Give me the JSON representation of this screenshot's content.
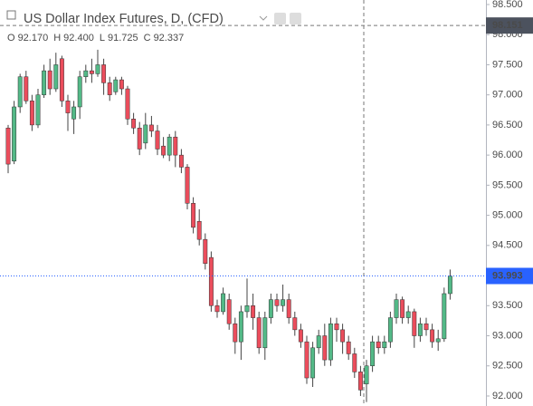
{
  "chart_data": {
    "type": "candlestick",
    "title": "US Dollar Index Futures, D, (CFD)",
    "ohlc_header": {
      "names": [
        "O",
        "H",
        "L",
        "C"
      ],
      "values": [
        92.17,
        92.4,
        91.725,
        92.337
      ],
      "value_labels": [
        "92.170",
        "92.400",
        "91.725",
        "92.337"
      ]
    },
    "open": [
      96.45,
      95.9,
      96.8,
      97.3,
      96.9,
      96.5,
      97.0,
      97.4,
      97.1,
      97.6,
      96.9,
      96.6,
      96.8,
      97.3,
      97.4,
      97.35,
      97.5,
      97.2,
      97.05,
      97.25,
      97.1,
      96.6,
      96.45,
      96.2,
      96.5,
      96.4,
      96.15,
      96.0,
      96.3,
      96.0,
      95.8,
      95.2,
      94.9,
      94.6,
      94.3,
      93.5,
      93.4,
      93.6,
      93.2,
      92.9,
      93.4,
      93.5,
      93.3,
      92.8,
      93.3,
      93.6,
      93.5,
      93.6,
      93.3,
      93.1,
      92.9,
      92.3,
      92.8,
      93.0,
      92.6,
      93.2,
      93.1,
      92.9,
      92.7,
      92.4,
      92.2,
      92.5,
      92.9,
      92.8,
      92.9,
      93.3,
      93.6,
      93.3,
      93.4,
      93.0,
      93.2,
      93.1,
      92.9,
      92.95,
      93.7
    ],
    "high": [
      96.5,
      96.9,
      97.35,
      97.4,
      97.0,
      97.1,
      97.5,
      97.6,
      97.7,
      97.65,
      97.0,
      96.9,
      97.4,
      97.5,
      97.6,
      97.75,
      97.6,
      97.3,
      97.3,
      97.3,
      97.15,
      96.7,
      96.55,
      96.7,
      96.65,
      96.5,
      96.3,
      96.35,
      96.4,
      96.1,
      95.85,
      95.3,
      95.1,
      94.7,
      94.4,
      93.6,
      93.8,
      93.7,
      93.3,
      93.5,
      93.95,
      93.7,
      93.4,
      93.4,
      93.7,
      93.7,
      93.85,
      93.7,
      93.4,
      93.2,
      93.0,
      92.9,
      93.1,
      93.2,
      93.3,
      93.3,
      93.2,
      93.0,
      92.8,
      92.5,
      92.6,
      93.0,
      93.0,
      93.0,
      93.4,
      93.7,
      93.65,
      93.5,
      93.45,
      93.3,
      93.3,
      93.2,
      93.1,
      93.8,
      94.1
    ],
    "low": [
      95.7,
      95.85,
      96.7,
      96.85,
      96.4,
      96.45,
      96.95,
      97.0,
      97.05,
      96.8,
      96.4,
      96.35,
      96.6,
      97.2,
      97.2,
      97.3,
      97.0,
      96.9,
      97.0,
      97.0,
      96.5,
      96.35,
      96.0,
      96.1,
      96.3,
      96.0,
      95.95,
      95.9,
      95.8,
      95.7,
      95.1,
      94.7,
      94.5,
      94.1,
      93.4,
      93.3,
      93.35,
      93.1,
      92.7,
      92.6,
      93.3,
      93.1,
      92.7,
      92.6,
      93.2,
      93.4,
      93.4,
      93.2,
      93.0,
      92.8,
      92.2,
      92.15,
      92.7,
      92.5,
      92.5,
      92.9,
      92.7,
      92.6,
      92.3,
      92.0,
      91.9,
      92.4,
      92.7,
      92.7,
      92.8,
      93.2,
      93.2,
      93.2,
      92.8,
      92.9,
      93.0,
      92.8,
      92.75,
      92.9,
      93.6
    ],
    "close": [
      95.85,
      96.8,
      97.3,
      96.9,
      96.5,
      97.0,
      97.4,
      97.1,
      97.5,
      96.9,
      96.7,
      96.8,
      97.3,
      97.4,
      97.35,
      97.5,
      97.2,
      97.0,
      97.25,
      97.1,
      96.6,
      96.45,
      96.1,
      96.5,
      96.4,
      96.1,
      96.0,
      96.3,
      96.0,
      95.8,
      95.2,
      94.8,
      94.6,
      94.2,
      93.5,
      93.4,
      93.7,
      93.2,
      92.9,
      93.4,
      93.5,
      93.3,
      92.8,
      93.3,
      93.6,
      93.5,
      93.6,
      93.3,
      93.1,
      92.9,
      92.3,
      92.8,
      93.0,
      92.6,
      93.2,
      93.1,
      92.9,
      92.7,
      92.4,
      92.1,
      92.5,
      92.9,
      92.8,
      92.9,
      93.3,
      93.6,
      93.3,
      93.4,
      93.0,
      93.2,
      93.1,
      92.9,
      92.95,
      93.7,
      93.99
    ],
    "up_color": "#53b987",
    "down_color": "#eb4d5c",
    "ylim": [
      91.834,
      98.575
    ],
    "yticks": [
      {
        "value": 92.0,
        "label": "92.000"
      },
      {
        "value": 92.5,
        "label": "92.500"
      },
      {
        "value": 93.0,
        "label": "93.000"
      },
      {
        "value": 93.5,
        "label": "93.500"
      },
      {
        "value": 94.0,
        "label": "94.000"
      },
      {
        "value": 94.5,
        "label": "94.500"
      },
      {
        "value": 95.0,
        "label": "95.000"
      },
      {
        "value": 95.5,
        "label": "95.500"
      },
      {
        "value": 96.0,
        "label": "96.000"
      },
      {
        "value": 96.5,
        "label": "96.500"
      },
      {
        "value": 97.0,
        "label": "97.000"
      },
      {
        "value": 97.5,
        "label": "97.500"
      },
      {
        "value": 98.0,
        "label": "98.000"
      },
      {
        "value": 98.5,
        "label": "98.500"
      }
    ],
    "last_price": 93.993,
    "last_price_color": "#2962ff",
    "crosshair_price": 98.151
  }
}
